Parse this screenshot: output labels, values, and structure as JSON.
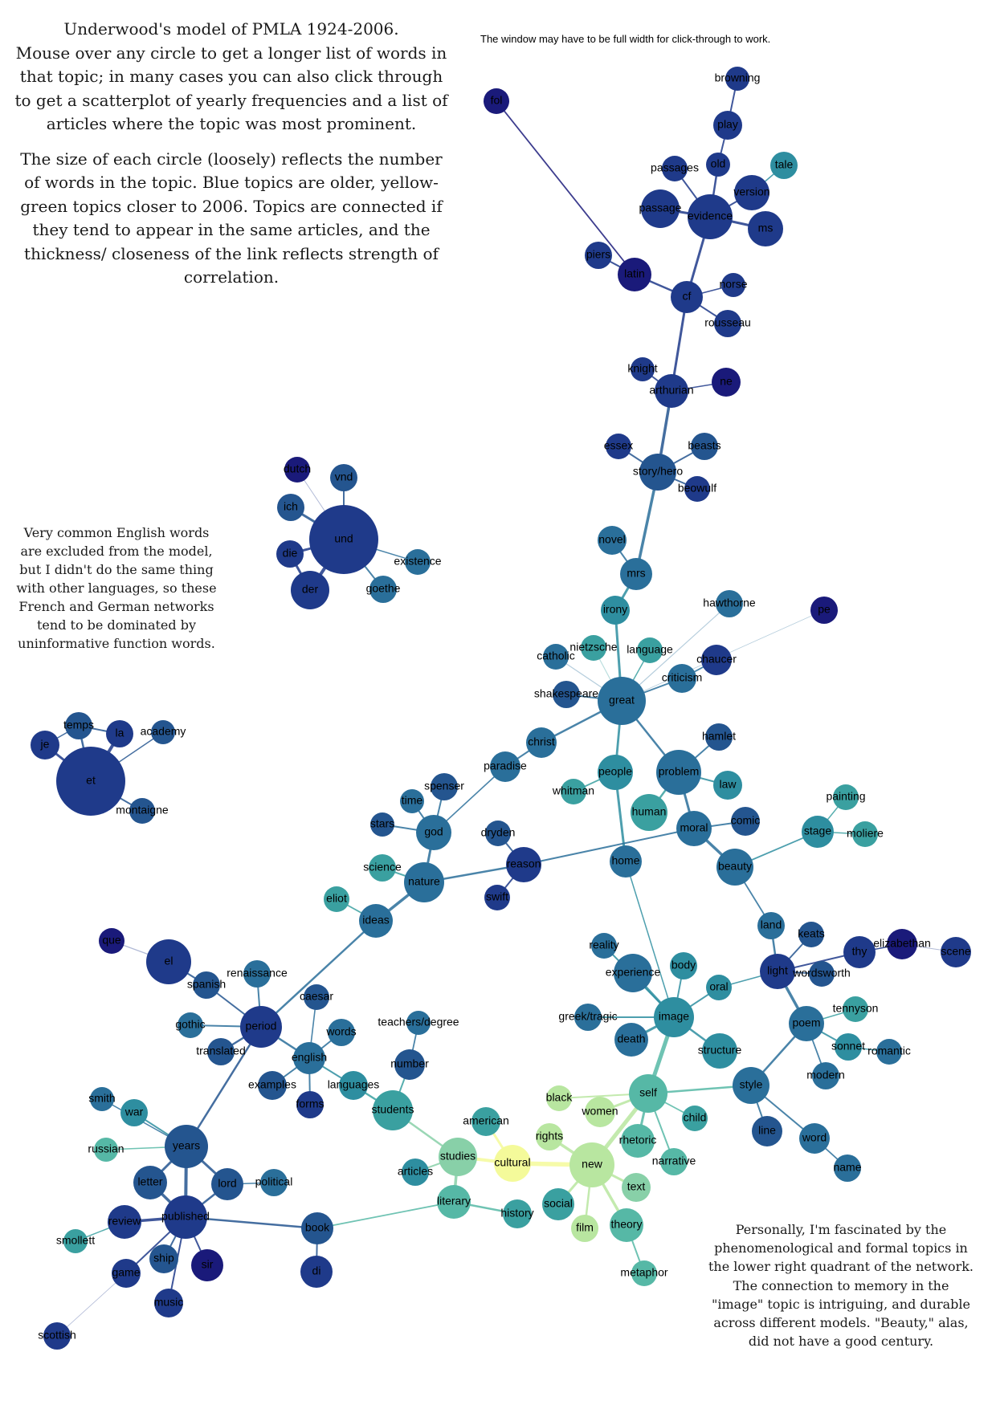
{
  "intro": {
    "lines": [
      "Underwood's model of PMLA 1924-2006.",
      "Mouse over any circle to get a longer list of words in that topic; in many cases you can also click through to get a scatterplot of yearly frequencies and a list of articles where the topic was most prominent.",
      "The size of each circle (loosely) reflects the number of words in the topic. Blue topics are older, yellow-green topics closer to 2006. Topics are connected if they tend to appear in the same articles, and the thickness/ closeness of the link reflects strength of correlation."
    ]
  },
  "note": "The window may have to be full width for click-through to work.",
  "side_note": "Very common English words are excluded from the model, but I didn't do the same thing with other languages, so these French and German networks tend to be dominated by uninformative function words.",
  "closing_note": "Personally, I'm fascinated by the phenomenological and formal topics in the lower right quadrant of the network. The connection to memory in the \"image\" topic is intriguing, and durable across different models. \"Beauty,\" alas, did not have a good century.",
  "topics": [
    "fol",
    "browning",
    "play",
    "old",
    "passages",
    "tale",
    "version",
    "passage",
    "evidence",
    "ms",
    "piers",
    "latin",
    "cf",
    "norse",
    "rousseau",
    "knight",
    "arthurian",
    "ne",
    "essex",
    "beasts",
    "story/hero",
    "beowulf",
    "novel",
    "mrs",
    "irony",
    "hawthorne",
    "pe",
    "catholic",
    "nietzsche",
    "language",
    "chaucer",
    "criticism",
    "shakespeare",
    "great",
    "christ",
    "hamlet",
    "paradise",
    "people",
    "problem",
    "law",
    "whitman",
    "human",
    "painting",
    "spenser",
    "time",
    "comic",
    "stars",
    "god",
    "dryden",
    "moral",
    "stage",
    "moliere",
    "home",
    "reason",
    "science",
    "nature",
    "beauty",
    "eliot",
    "ideas",
    "swift",
    "dutch",
    "vnd",
    "ich",
    "und",
    "existence",
    "die",
    "der",
    "goethe",
    "temps",
    "je",
    "la",
    "academy",
    "et",
    "montaigne",
    "que",
    "el",
    "land",
    "keats",
    "reality",
    "elizabethan",
    "thy",
    "scene",
    "renaissance",
    "spanish",
    "body",
    "experience",
    "caesar",
    "light",
    "wordsworth",
    "oral",
    "teachers/degree",
    "gothic",
    "period",
    "words",
    "greek/tragic",
    "image",
    "tennyson",
    "poem",
    "translated",
    "english",
    "death",
    "sonnet",
    "romantic",
    "structure",
    "number",
    "modern",
    "languages",
    "examples",
    "forms",
    "black",
    "self",
    "style",
    "smith",
    "war",
    "students",
    "women",
    "child",
    "american",
    "rights",
    "line",
    "word",
    "russian",
    "years",
    "cultural",
    "rhetoric",
    "studies",
    "new",
    "narrative",
    "articles",
    "name",
    "letter",
    "lord",
    "political",
    "text",
    "literary",
    "review",
    "published",
    "book",
    "social",
    "smollett",
    "history",
    "theory",
    "ship",
    "sir",
    "film",
    "game",
    "di",
    "metaphor",
    "music",
    "scottish"
  ],
  "legend": {
    "older_color": "#1f3a8a",
    "newer_color": "#f4fa9a"
  }
}
